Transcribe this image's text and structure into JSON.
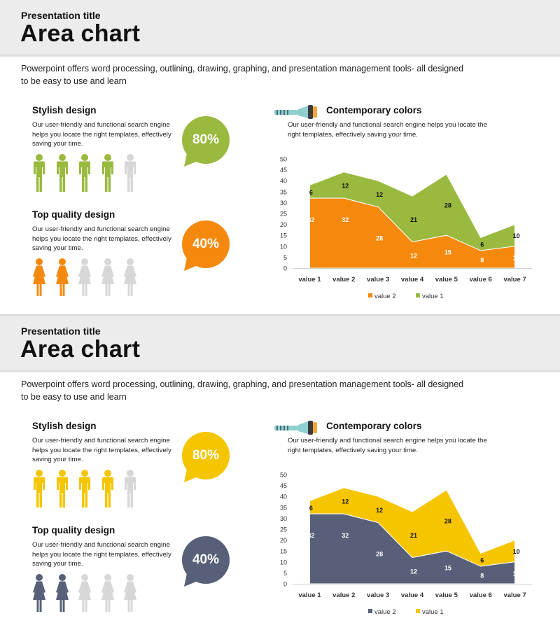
{
  "slides": [
    {
      "kicker": "Presentation title",
      "title": "Area chart",
      "intro": "Powerpoint offers word processing, outlining, drawing, graphing, and presentation management tools- all designed to be easy to use and learn",
      "stylish": {
        "heading": "Stylish design",
        "text": "Our user-friendly and functional search engine helps you locate the right templates, effectively saving your time.",
        "percent": "80%",
        "filled": 4,
        "total": 5,
        "icon": "male-person-icon"
      },
      "quality": {
        "heading": "Top quality design",
        "text": "Our user-friendly and functional search engine helps you locate the right templates, effectively saving your time.",
        "percent": "40%",
        "filled": 2,
        "total": 5,
        "icon": "female-person-icon"
      },
      "colors": {
        "heading": "Contemporary colors",
        "text": "Our user-friendly and functional search engine helps you locate the right templates, effectively saving your time.",
        "icon": "flashlight-icon"
      },
      "theme": {
        "accent1": "#9aba3f",
        "accent2": "#f4890e",
        "person_empty": "#d7d7d7",
        "torch": "#8fcfd0"
      }
    },
    {
      "kicker": "Presentation title",
      "title": "Area chart",
      "intro": "Powerpoint offers word processing, outlining, drawing, graphing, and presentation management tools- all designed to be easy to use and learn",
      "stylish": {
        "heading": "Stylish design",
        "text": "Our user-friendly and functional search engine helps you locate the right templates, effectively saving your time.",
        "percent": "80%",
        "filled": 4,
        "total": 5,
        "icon": "male-person-icon"
      },
      "quality": {
        "heading": "Top quality design",
        "text": "Our user-friendly and functional search engine helps you locate the right templates, effectively saving your time.",
        "percent": "40%",
        "filled": 2,
        "total": 5,
        "icon": "female-person-icon"
      },
      "colors": {
        "heading": "Contemporary colors",
        "text": "Our user-friendly and functional search engine helps you locate the right templates, effectively saving your time.",
        "icon": "flashlight-icon"
      },
      "theme": {
        "accent1": "#f5c500",
        "accent2": "#576078",
        "person_empty": "#d7d7d7",
        "torch": "#8fcfd0"
      }
    }
  ],
  "chart_data": [
    {
      "type": "area",
      "stacked": true,
      "categories": [
        "value 1",
        "value 2",
        "value 3",
        "value 4",
        "value 5",
        "value 6",
        "value 7"
      ],
      "series": [
        {
          "name": "value 2",
          "values": [
            32,
            32,
            28,
            12,
            15,
            8,
            10
          ],
          "color": "#f4890e"
        },
        {
          "name": "value 1",
          "values": [
            6,
            12,
            12,
            21,
            28,
            6,
            10
          ],
          "color": "#9aba3f"
        }
      ],
      "ylim": [
        0,
        50
      ],
      "yticks": [
        0,
        5,
        10,
        15,
        20,
        25,
        30,
        35,
        40,
        45,
        50
      ],
      "legend": "bottom"
    },
    {
      "type": "area",
      "stacked": true,
      "categories": [
        "value 1",
        "value 2",
        "value 3",
        "value 4",
        "value 5",
        "value 6",
        "value 7"
      ],
      "series": [
        {
          "name": "value 2",
          "values": [
            32,
            32,
            28,
            12,
            15,
            8,
            10
          ],
          "color": "#576078"
        },
        {
          "name": "value 1",
          "values": [
            6,
            12,
            12,
            21,
            28,
            6,
            10
          ],
          "color": "#f5c500"
        }
      ],
      "ylim": [
        0,
        50
      ],
      "yticks": [
        0,
        5,
        10,
        15,
        20,
        25,
        30,
        35,
        40,
        45,
        50
      ],
      "legend": "bottom"
    }
  ]
}
